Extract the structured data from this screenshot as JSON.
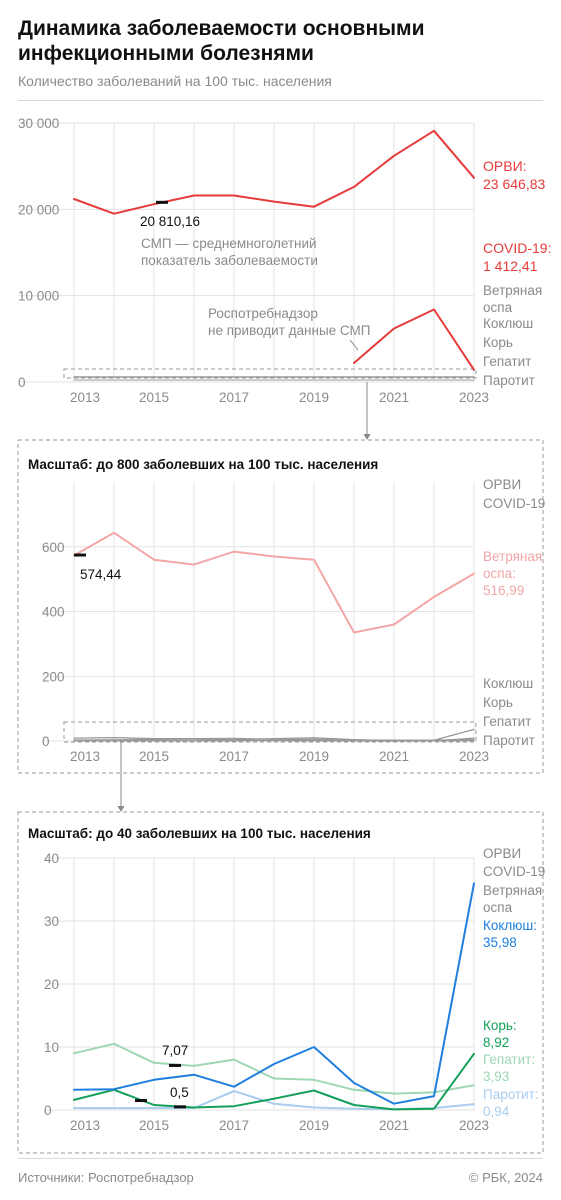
{
  "header": {
    "title": "Динамика заболеваемости основными инфекционными болезнями",
    "subtitle": "Количество заболеваний на 100 тыс. населения"
  },
  "footer": {
    "source": "Источники: Роспотребнадзор",
    "credit": "© РБК, 2024"
  },
  "colors": {
    "orvi": "#e63b3b",
    "covid": "#e63b3b",
    "vetryanka": "#f2a6a6",
    "koklyush": "#1f7fe0",
    "kor": "#14a05a",
    "gepatit": "#9fd6b4",
    "parotit": "#a9cdef",
    "muted": "#8a8a8a",
    "grid": "#e3e3e3"
  },
  "chart_data": [
    {
      "type": "line",
      "ylim": [
        0,
        30000
      ],
      "yticks": [
        "0",
        "10 000",
        "20 000",
        "30 000"
      ],
      "x_ticks": [
        "2013",
        "2015",
        "2017",
        "2019",
        "2021",
        "2023"
      ],
      "series": [
        {
          "name": "ОРВИ",
          "x": [
            2013,
            2014,
            2015,
            2016,
            2017,
            2018,
            2019,
            2020,
            2021,
            2022,
            2023
          ],
          "values": [
            21200,
            19500,
            20600,
            21600,
            21600,
            20900,
            20300,
            22600,
            26200,
            29100,
            23646.83
          ]
        },
        {
          "name": "COVID-19",
          "x": [
            2020,
            2021,
            2022,
            2023
          ],
          "values": [
            2200,
            6200,
            8400,
            1412.41
          ]
        },
        {
          "name": "Ветряная оспа",
          "x": [
            2013,
            2014,
            2015,
            2016,
            2017,
            2018,
            2019,
            2020,
            2021,
            2022,
            2023
          ],
          "values": [
            574,
            640,
            560,
            545,
            585,
            570,
            560,
            335,
            360,
            445,
            517
          ]
        }
      ],
      "labels": {
        "orvi": "ОРВИ:",
        "orvi_value": "23 646,83",
        "covid": "COVID-19:",
        "covid_value": "1 412,41",
        "vetryanka1": "Ветряная",
        "vetryanka2": "оспа",
        "koklyush": "Коклюш",
        "kor": "Корь",
        "gepatit": "Гепатит",
        "parotit": "Паротит"
      },
      "smp_value": "20 810,16",
      "annotation_smp1": "СМП — среднемноголетний",
      "annotation_smp2": "показатель заболеваемости",
      "annotation_rpn1": "Роспотребнадзор",
      "annotation_rpn2": "не приводит данные СМП"
    },
    {
      "type": "line",
      "title": "Масштаб: до 800 заболевших на 100 тыс. населения",
      "ylim": [
        0,
        800
      ],
      "yticks": [
        "0",
        "200",
        "400",
        "600"
      ],
      "x_ticks": [
        "2013",
        "2015",
        "2017",
        "2019",
        "2021",
        "2023"
      ],
      "series": [
        {
          "name": "Ветряная оспа",
          "x": [
            2013,
            2014,
            2015,
            2016,
            2017,
            2018,
            2019,
            2020,
            2021,
            2022,
            2023
          ],
          "values": [
            573,
            643,
            560,
            545,
            585,
            570,
            560,
            335,
            360,
            445,
            516.99
          ]
        },
        {
          "name": "Коклюш",
          "x": [
            2013,
            2014,
            2015,
            2016,
            2017,
            2018,
            2019,
            2020,
            2021,
            2022,
            2023
          ],
          "values": [
            3.2,
            3.3,
            4.8,
            5.6,
            3.7,
            7.3,
            10,
            4.3,
            1,
            2.2,
            35.98
          ]
        },
        {
          "name": "Гепатит",
          "x": [
            2013,
            2014,
            2015,
            2016,
            2017,
            2018,
            2019,
            2020,
            2021,
            2022,
            2023
          ],
          "values": [
            9,
            10.5,
            7.5,
            7,
            8,
            5,
            4.8,
            3.2,
            2.6,
            2.8,
            3.93
          ]
        },
        {
          "name": "Корь",
          "x": [
            2013,
            2014,
            2015,
            2016,
            2017,
            2018,
            2019,
            2020,
            2021,
            2022,
            2023
          ],
          "values": [
            1.6,
            3.2,
            0.8,
            0.4,
            0.6,
            1.8,
            3.1,
            0.8,
            0.1,
            0.2,
            8.92
          ]
        },
        {
          "name": "Паротит",
          "x": [
            2013,
            2014,
            2015,
            2016,
            2017,
            2018,
            2019,
            2020,
            2021,
            2022,
            2023
          ],
          "values": [
            0.3,
            0.3,
            0.3,
            0.3,
            3,
            1,
            0.4,
            0.2,
            0.1,
            0.3,
            0.94
          ]
        }
      ],
      "labels": {
        "orvi": "ОРВИ",
        "covid": "COVID-19",
        "vetryanka1": "Ветряная",
        "vetryanka2": "оспа:",
        "vetryanka_value": "516,99",
        "koklyush": "Коклюш",
        "kor": "Корь",
        "gepatit": "Гепатит",
        "parotit": "Паротит"
      },
      "smp_value": "574,44"
    },
    {
      "type": "line",
      "title": "Масштаб: до 40 заболевших на 100 тыс. населения",
      "ylim": [
        0,
        40
      ],
      "yticks": [
        "0",
        "10",
        "20",
        "30",
        "40"
      ],
      "x_ticks": [
        "2013",
        "2015",
        "2017",
        "2019",
        "2021",
        "2023"
      ],
      "series": [
        {
          "name": "Гепатит",
          "x": [
            2013,
            2014,
            2015,
            2016,
            2017,
            2018,
            2019,
            2020,
            2021,
            2022,
            2023
          ],
          "values": [
            9,
            10.5,
            7.5,
            7,
            8,
            5,
            4.8,
            3.2,
            2.6,
            2.8,
            3.93
          ]
        },
        {
          "name": "Паротит",
          "x": [
            2013,
            2014,
            2015,
            2016,
            2017,
            2018,
            2019,
            2020,
            2021,
            2022,
            2023
          ],
          "values": [
            0.3,
            0.3,
            0.3,
            0.3,
            3,
            1,
            0.4,
            0.2,
            0.1,
            0.3,
            0.94
          ]
        },
        {
          "name": "Корь",
          "x": [
            2013,
            2014,
            2015,
            2016,
            2017,
            2018,
            2019,
            2020,
            2021,
            2022,
            2023
          ],
          "values": [
            1.6,
            3.2,
            0.8,
            0.4,
            0.6,
            1.8,
            3.1,
            0.8,
            0.1,
            0.2,
            8.92
          ]
        },
        {
          "name": "Коклюш",
          "x": [
            2013,
            2014,
            2015,
            2016,
            2017,
            2018,
            2019,
            2020,
            2021,
            2022,
            2023
          ],
          "values": [
            3.2,
            3.3,
            4.8,
            5.6,
            3.7,
            7.3,
            10,
            4.3,
            1,
            2.2,
            35.98
          ]
        }
      ],
      "labels": {
        "orvi": "ОРВИ",
        "covid": "COVID-19",
        "vetryanka1": "Ветряная",
        "vetryanka2": "оспа",
        "koklyush": "Коклюш:",
        "koklyush_value": "35,98",
        "kor": "Корь:",
        "kor_value": "8,92",
        "gepatit": "Гепатит:",
        "gepatit_value": "3,93",
        "parotit": "Паротит:",
        "parotit_value": "0,94"
      },
      "smp_koklyush": "7,07",
      "smp_kor": "0,5"
    }
  ]
}
